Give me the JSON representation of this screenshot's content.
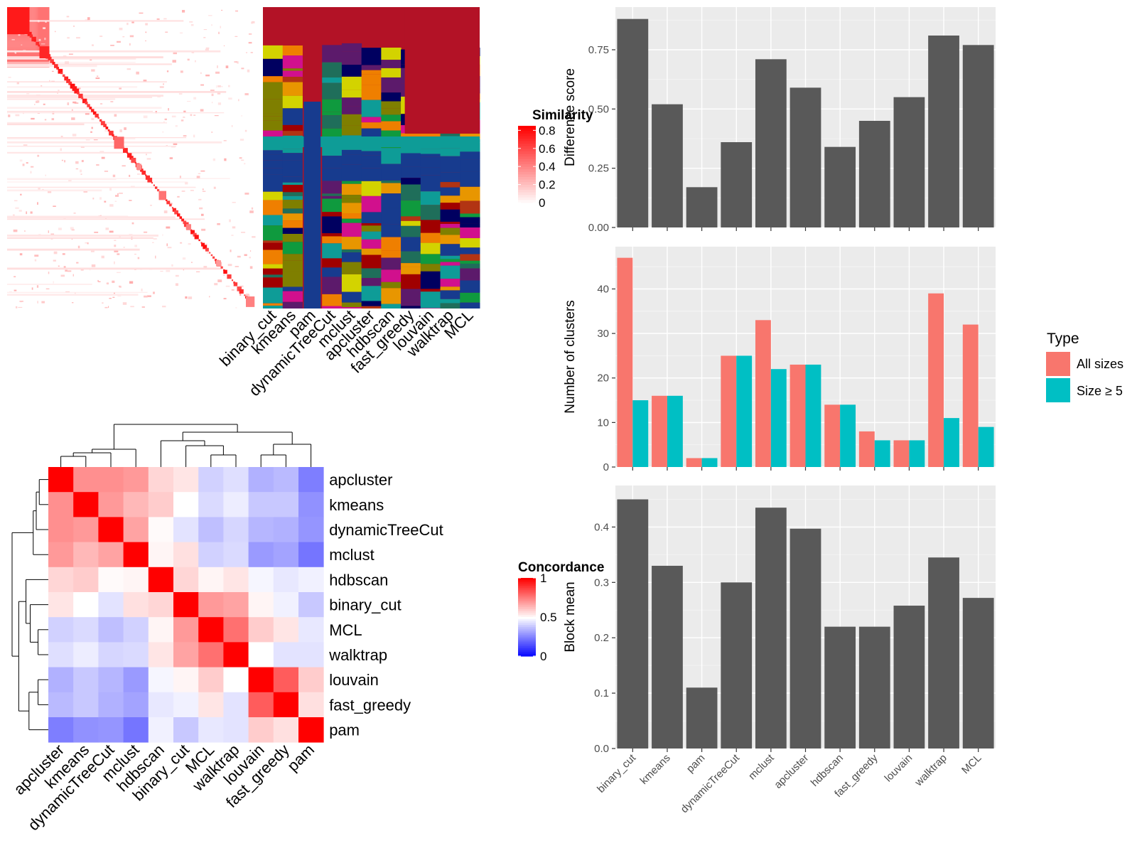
{
  "chart_data": [
    {
      "type": "heatmap",
      "id": "similarity_heatmap",
      "title": "",
      "legend_title": "Similarity",
      "legend_ticks": [
        "0.8",
        "0.6",
        "0.4",
        "0.2",
        "0"
      ],
      "legend_values": [
        0.8,
        0.6,
        0.4,
        0.2,
        0
      ],
      "color_low": "#ffffff",
      "color_high": "#ff0000",
      "diagonal_blocks": [
        0.9,
        0.85,
        0.6,
        0.55,
        0.5,
        0.45,
        0.5,
        0.4,
        0.5,
        0.45,
        0.4
      ]
    },
    {
      "type": "heatmap",
      "id": "cluster_assignment_annotation",
      "columns": [
        "binary_cut",
        "kmeans",
        "pam",
        "dynamicTreeCut",
        "mclust",
        "apcluster",
        "hdbscan",
        "fast_greedy",
        "louvain",
        "walktrap",
        "MCL"
      ],
      "palette": [
        "#B31226",
        "#173B8E",
        "#0E9C97",
        "#D3D300",
        "#E89600",
        "#D1108D",
        "#0F9A3E",
        "#B23413",
        "#A00000",
        "#000060",
        "#EF7F00",
        "#5C1A6B",
        "#1F6E5A",
        "#7F7F00"
      ]
    },
    {
      "type": "heatmap",
      "id": "concordance_heatmap",
      "rows": [
        "apcluster",
        "kmeans",
        "dynamicTreeCut",
        "mclust",
        "hdbscan",
        "binary_cut",
        "MCL",
        "walktrap",
        "louvain",
        "fast_greedy",
        "pam"
      ],
      "columns": [
        "apcluster",
        "kmeans",
        "dynamicTreeCut",
        "mclust",
        "hdbscan",
        "binary_cut",
        "MCL",
        "walktrap",
        "louvain",
        "fast_greedy",
        "pam"
      ],
      "legend_title": "Concordance",
      "legend_ticks": [
        "1",
        "0.5",
        "0"
      ],
      "legend_values": [
        1,
        0.5,
        0
      ],
      "color_low": "#0000ff",
      "color_mid": "#ffffff",
      "color_high": "#ff0000",
      "values": [
        [
          1.0,
          0.72,
          0.72,
          0.7,
          0.58,
          0.55,
          0.4,
          0.43,
          0.33,
          0.35,
          0.22
        ],
        [
          0.72,
          1.0,
          0.7,
          0.64,
          0.6,
          0.5,
          0.42,
          0.46,
          0.38,
          0.38,
          0.26
        ],
        [
          0.72,
          0.7,
          1.0,
          0.68,
          0.51,
          0.44,
          0.36,
          0.41,
          0.34,
          0.33,
          0.27
        ],
        [
          0.7,
          0.64,
          0.68,
          1.0,
          0.52,
          0.56,
          0.4,
          0.42,
          0.28,
          0.3,
          0.2
        ],
        [
          0.58,
          0.6,
          0.51,
          0.52,
          1.0,
          0.58,
          0.52,
          0.55,
          0.48,
          0.45,
          0.47
        ],
        [
          0.55,
          0.5,
          0.44,
          0.56,
          0.58,
          1.0,
          0.7,
          0.68,
          0.52,
          0.47,
          0.38
        ],
        [
          0.4,
          0.42,
          0.36,
          0.4,
          0.52,
          0.7,
          1.0,
          0.78,
          0.6,
          0.55,
          0.45
        ],
        [
          0.43,
          0.46,
          0.41,
          0.42,
          0.55,
          0.68,
          0.78,
          1.0,
          0.5,
          0.44,
          0.44
        ],
        [
          0.33,
          0.38,
          0.34,
          0.28,
          0.48,
          0.52,
          0.6,
          0.5,
          1.0,
          0.82,
          0.6
        ],
        [
          0.35,
          0.38,
          0.33,
          0.3,
          0.45,
          0.47,
          0.55,
          0.44,
          0.82,
          1.0,
          0.56
        ],
        [
          0.22,
          0.26,
          0.27,
          0.2,
          0.47,
          0.38,
          0.45,
          0.44,
          0.6,
          0.56,
          1.0
        ]
      ]
    },
    {
      "type": "bar",
      "id": "difference_score",
      "categories": [
        "binary_cut",
        "kmeans",
        "pam",
        "dynamicTreeCut",
        "mclust",
        "apcluster",
        "hdbscan",
        "fast_greedy",
        "louvain",
        "walktrap",
        "MCL"
      ],
      "values": [
        0.88,
        0.52,
        0.17,
        0.36,
        0.71,
        0.59,
        0.34,
        0.45,
        0.55,
        0.81,
        0.77
      ],
      "ylabel": "Difference score",
      "ylim": [
        0,
        0.93
      ],
      "yticks": [
        0.0,
        0.25,
        0.5,
        0.75
      ],
      "ytick_labels": [
        "0.00",
        "0.25",
        "0.50",
        "0.75"
      ],
      "bar_color": "#595959",
      "panel_bg": "#ebebeb",
      "grid": true
    },
    {
      "type": "bar",
      "id": "number_of_clusters",
      "categories": [
        "binary_cut",
        "kmeans",
        "pam",
        "dynamicTreeCut",
        "mclust",
        "apcluster",
        "hdbscan",
        "fast_greedy",
        "louvain",
        "walktrap",
        "MCL"
      ],
      "series": [
        {
          "name": "All sizes",
          "color": "#F8766D",
          "values": [
            47,
            16,
            2,
            25,
            33,
            23,
            14,
            8,
            6,
            39,
            32
          ]
        },
        {
          "name": "Size ≥ 5",
          "color": "#00BFC4",
          "values": [
            15,
            16,
            2,
            25,
            22,
            23,
            14,
            6,
            6,
            11,
            9
          ]
        }
      ],
      "ylabel": "Number of clusters",
      "ylim": [
        0,
        49.5
      ],
      "yticks": [
        0,
        10,
        20,
        30,
        40
      ],
      "ytick_labels": [
        "0",
        "10",
        "20",
        "30",
        "40"
      ],
      "legend_title": "Type",
      "legend_position": "right",
      "panel_bg": "#ebebeb",
      "grid": true
    },
    {
      "type": "bar",
      "id": "block_mean",
      "categories": [
        "binary_cut",
        "kmeans",
        "pam",
        "dynamicTreeCut",
        "mclust",
        "apcluster",
        "hdbscan",
        "fast_greedy",
        "louvain",
        "walktrap",
        "MCL"
      ],
      "values": [
        0.45,
        0.33,
        0.11,
        0.3,
        0.435,
        0.397,
        0.22,
        0.22,
        0.258,
        0.345,
        0.272
      ],
      "ylabel": "Block mean",
      "ylim": [
        0,
        0.475
      ],
      "yticks": [
        0.0,
        0.1,
        0.2,
        0.3,
        0.4
      ],
      "ytick_labels": [
        "0.0",
        "0.1",
        "0.2",
        "0.3",
        "0.4"
      ],
      "bar_color": "#595959",
      "panel_bg": "#ebebeb",
      "grid": true
    }
  ]
}
